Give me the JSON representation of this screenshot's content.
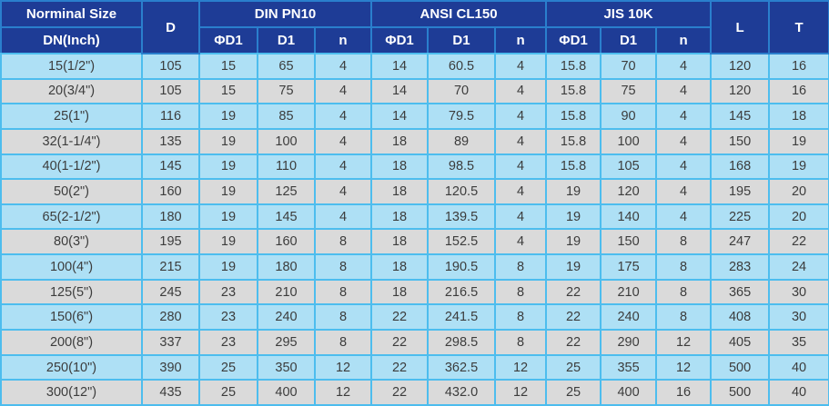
{
  "colors": {
    "header_bg": "#1e3c96",
    "header_border": "#2a7fcd",
    "grid_border": "#4dbdee",
    "row_blue": "#aee0f5",
    "row_gray": "#dadada",
    "header_text": "#ffffff",
    "body_text": "#3c3c3c"
  },
  "table": {
    "header": {
      "nominal_size": "Norminal Size",
      "dn_inch": "DN(Inch)",
      "d": "D",
      "l": "L",
      "t": "T",
      "groups": [
        {
          "label": "DIN PN10",
          "sub": [
            "ΦD1",
            "D1",
            "n"
          ]
        },
        {
          "label": "ANSI CL150",
          "sub": [
            "ΦD1",
            "D1",
            "n"
          ]
        },
        {
          "label": "JIS 10K",
          "sub": [
            "ΦD1",
            "D1",
            "n"
          ]
        }
      ]
    },
    "rows": [
      [
        "15(1/2\")",
        "105",
        "15",
        "65",
        "4",
        "14",
        "60.5",
        "4",
        "15.8",
        "70",
        "4",
        "120",
        "16"
      ],
      [
        "20(3/4\")",
        "105",
        "15",
        "75",
        "4",
        "14",
        "70",
        "4",
        "15.8",
        "75",
        "4",
        "120",
        "16"
      ],
      [
        "25(1\")",
        "116",
        "19",
        "85",
        "4",
        "14",
        "79.5",
        "4",
        "15.8",
        "90",
        "4",
        "145",
        "18"
      ],
      [
        "32(1-1/4\")",
        "135",
        "19",
        "100",
        "4",
        "18",
        "89",
        "4",
        "15.8",
        "100",
        "4",
        "150",
        "19"
      ],
      [
        "40(1-1/2\")",
        "145",
        "19",
        "110",
        "4",
        "18",
        "98.5",
        "4",
        "15.8",
        "105",
        "4",
        "168",
        "19"
      ],
      [
        "50(2\")",
        "160",
        "19",
        "125",
        "4",
        "18",
        "120.5",
        "4",
        "19",
        "120",
        "4",
        "195",
        "20"
      ],
      [
        "65(2-1/2\")",
        "180",
        "19",
        "145",
        "4",
        "18",
        "139.5",
        "4",
        "19",
        "140",
        "4",
        "225",
        "20"
      ],
      [
        "80(3\")",
        "195",
        "19",
        "160",
        "8",
        "18",
        "152.5",
        "4",
        "19",
        "150",
        "8",
        "247",
        "22"
      ],
      [
        "100(4\")",
        "215",
        "19",
        "180",
        "8",
        "18",
        "190.5",
        "8",
        "19",
        "175",
        "8",
        "283",
        "24"
      ],
      [
        "125(5\")",
        "245",
        "23",
        "210",
        "8",
        "18",
        "216.5",
        "8",
        "22",
        "210",
        "8",
        "365",
        "30"
      ],
      [
        "150(6\")",
        "280",
        "23",
        "240",
        "8",
        "22",
        "241.5",
        "8",
        "22",
        "240",
        "8",
        "408",
        "30"
      ],
      [
        "200(8\")",
        "337",
        "23",
        "295",
        "8",
        "22",
        "298.5",
        "8",
        "22",
        "290",
        "12",
        "405",
        "35"
      ],
      [
        "250(10\")",
        "390",
        "25",
        "350",
        "12",
        "22",
        "362.5",
        "12",
        "25",
        "355",
        "12",
        "500",
        "40"
      ],
      [
        "300(12\")",
        "435",
        "25",
        "400",
        "12",
        "22",
        "432.0",
        "12",
        "25",
        "400",
        "16",
        "500",
        "40"
      ]
    ]
  }
}
